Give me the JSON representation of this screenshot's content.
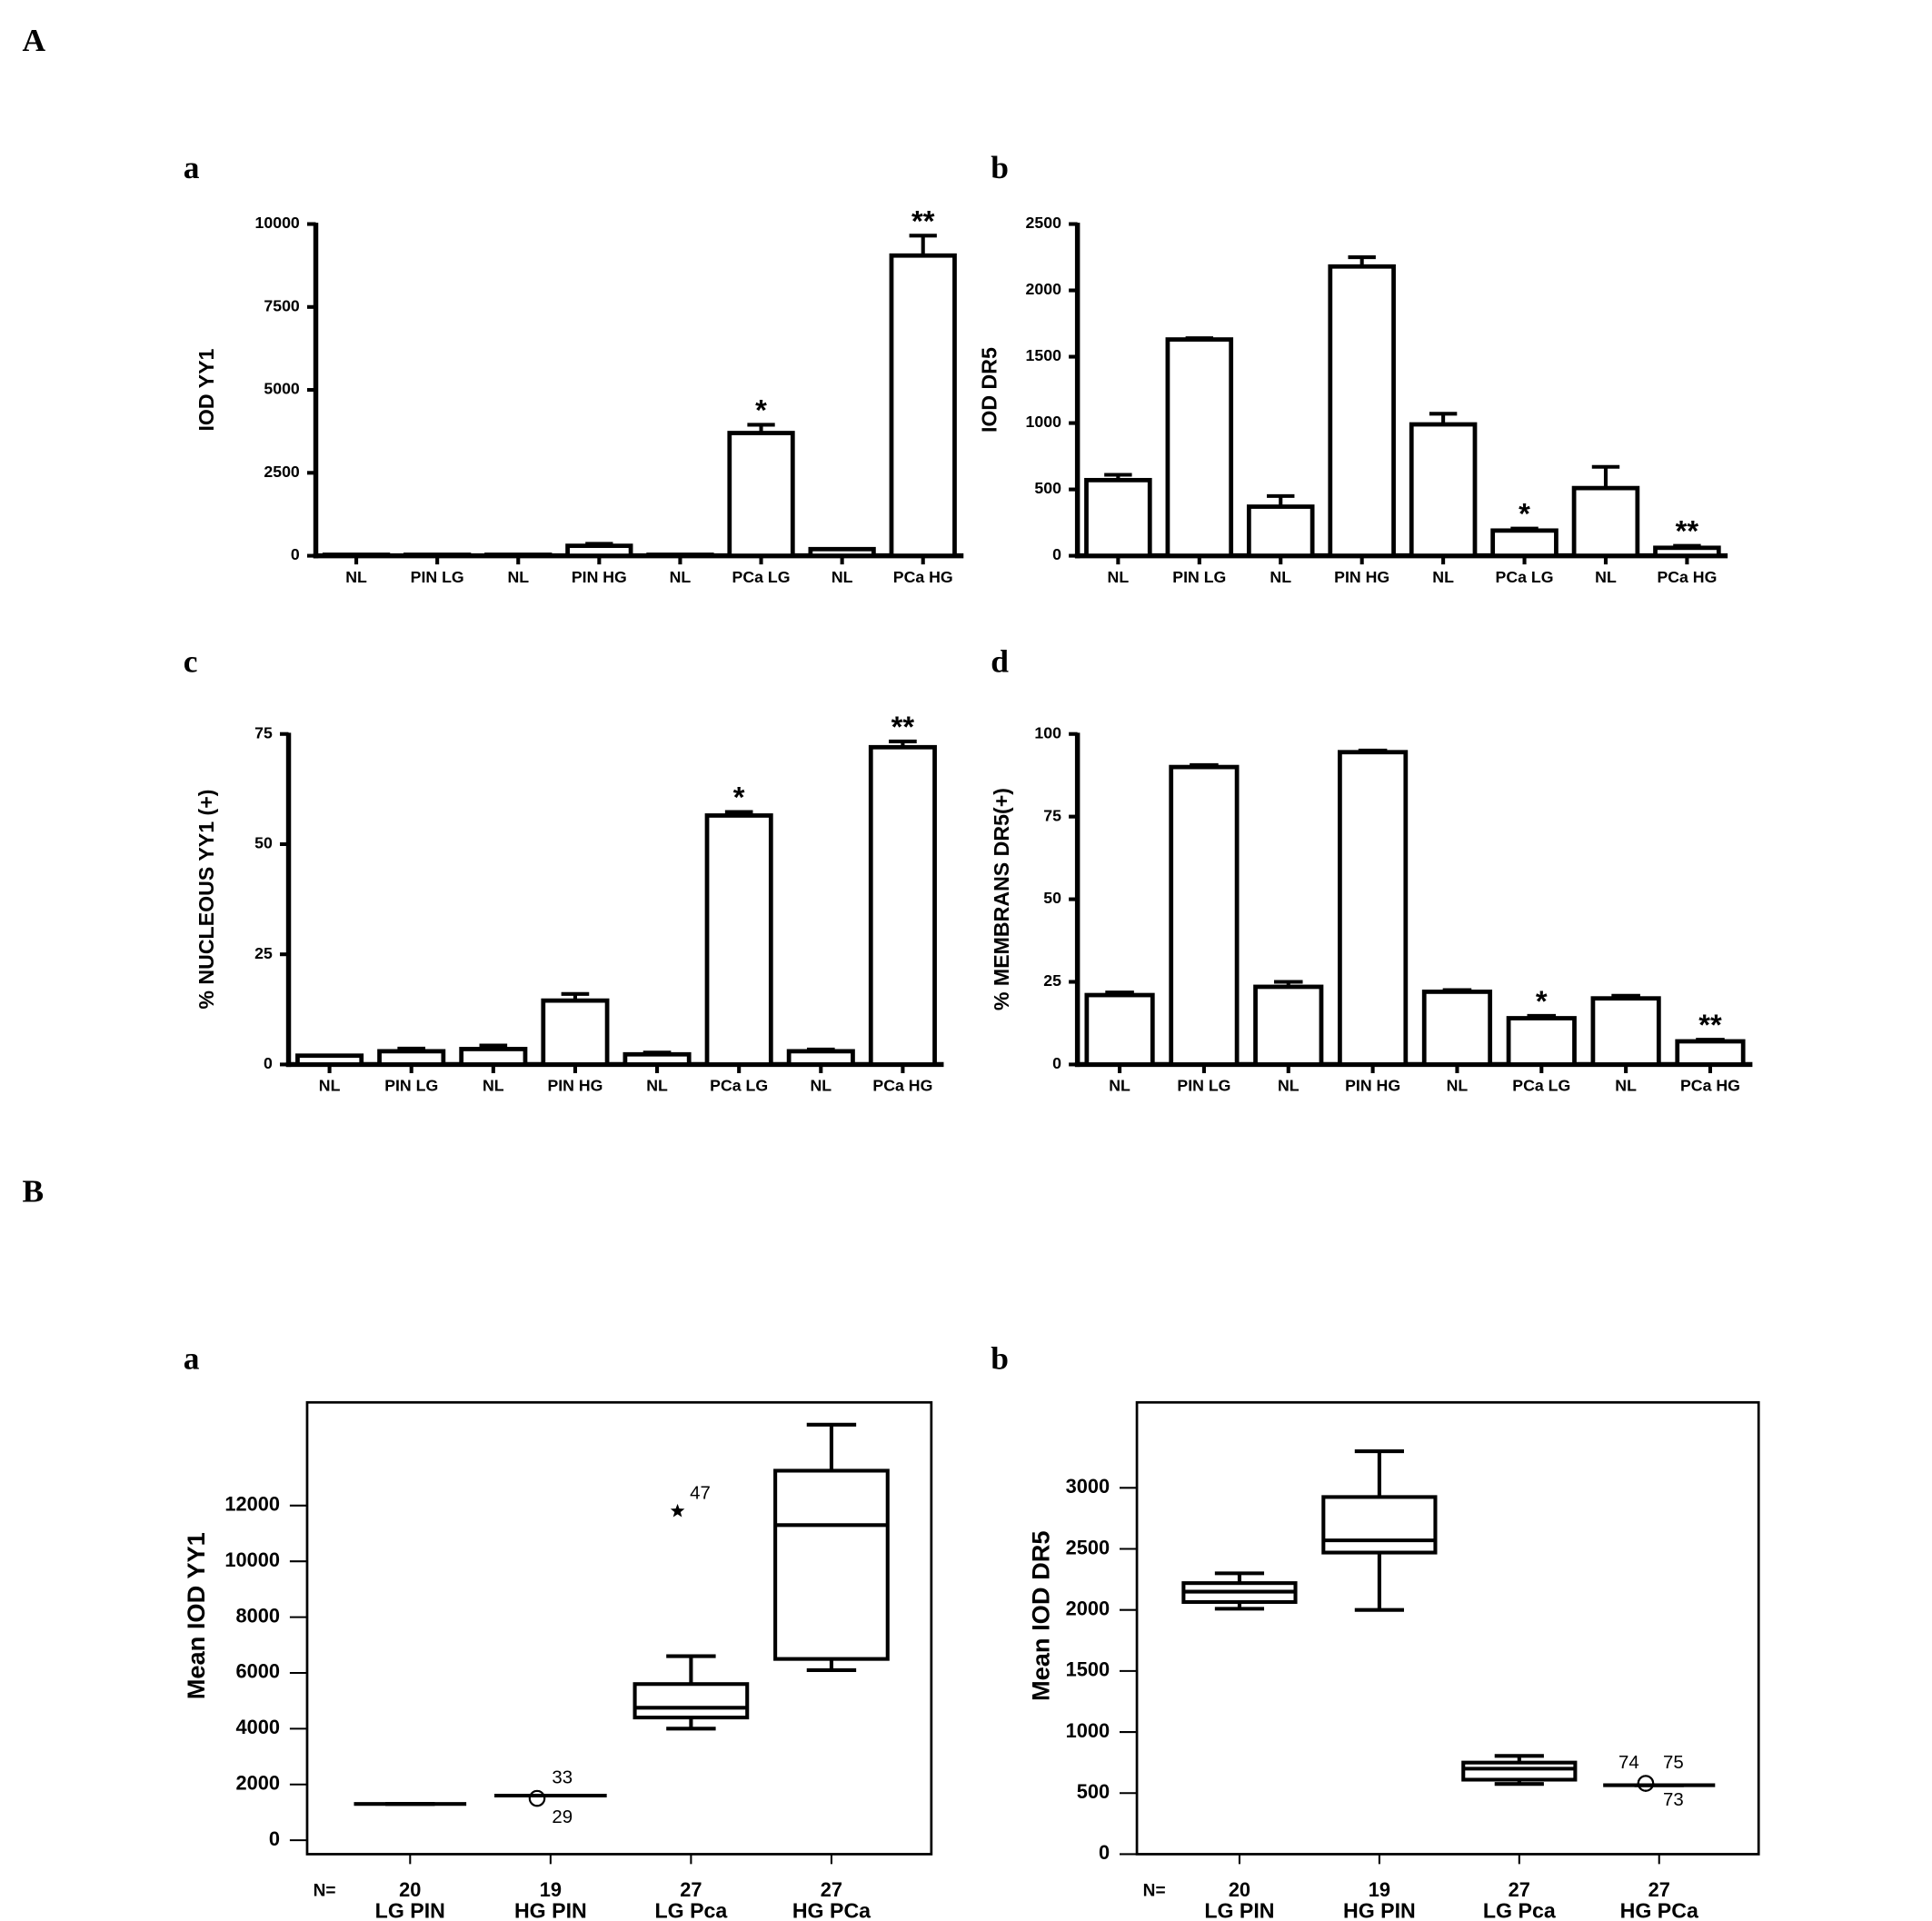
{
  "figure_labels": [
    "A",
    "B"
  ],
  "chart_data": [
    {
      "type": "bar",
      "label": "a",
      "y_label": "IOD YY1",
      "categories": [
        "NL",
        "PIN LG",
        "NL",
        "PIN HG",
        "NL",
        "PCa LG",
        "NL",
        "PCa HG"
      ],
      "values": [
        30,
        30,
        30,
        300,
        30,
        3700,
        200,
        9050
      ],
      "errors": [
        0,
        0,
        0,
        60,
        0,
        250,
        0,
        600
      ],
      "annotations": [
        {
          "category": "PCa LG",
          "text": "*"
        },
        {
          "category": "PCa HG",
          "text": "**"
        }
      ],
      "ylim": [
        0,
        10000
      ],
      "yticks": [
        0,
        2500,
        5000,
        7500,
        10000
      ],
      "color": "#ffffff"
    },
    {
      "type": "bar",
      "label": "b",
      "y_label": "IOD DR5",
      "categories": [
        "NL",
        "PIN LG",
        "NL",
        "PIN HG",
        "NL",
        "PCa LG",
        "NL",
        "PCa HG"
      ],
      "values": [
        570,
        1630,
        370,
        2180,
        990,
        190,
        510,
        60
      ],
      "errors": [
        40,
        10,
        80,
        70,
        80,
        15,
        160,
        15
      ],
      "annotations": [
        {
          "category": "PCa LG",
          "text": "*"
        },
        {
          "category": "PCa HG",
          "text": "**"
        }
      ],
      "ylim": [
        0,
        2500
      ],
      "yticks": [
        0,
        500,
        1000,
        1500,
        2000,
        2500
      ],
      "color": "#ffffff"
    },
    {
      "type": "bar",
      "label": "c",
      "y_label": "% NUCLEOUS YY1 (+)",
      "categories": [
        "NL",
        "PIN LG",
        "NL",
        "PIN HG",
        "NL",
        "PCa LG",
        "NL",
        "PCa HG"
      ],
      "values": [
        2,
        3,
        3.5,
        14.5,
        2.3,
        56.5,
        3,
        72
      ],
      "errors": [
        0,
        0.6,
        0.8,
        1.5,
        0.4,
        0.8,
        0.4,
        1.3
      ],
      "annotations": [
        {
          "category": "PCa LG",
          "text": "*"
        },
        {
          "category": "PCa HG",
          "text": "**"
        }
      ],
      "ylim": [
        0,
        75
      ],
      "yticks": [
        0,
        25,
        50,
        75
      ],
      "color": "#ffffff"
    },
    {
      "type": "bar",
      "label": "d",
      "y_label": "% MEMBRANS DR5(+)",
      "categories": [
        "NL",
        "PIN LG",
        "NL",
        "PIN HG",
        "NL",
        "PCa LG",
        "NL",
        "PCa HG"
      ],
      "values": [
        21,
        90,
        23.5,
        94.5,
        22,
        14,
        20,
        7
      ],
      "errors": [
        0.8,
        0.6,
        1.5,
        0.5,
        0.5,
        0.7,
        0.8,
        0.5
      ],
      "annotations": [
        {
          "category": "PCa LG",
          "text": "*"
        },
        {
          "category": "PCa HG",
          "text": "**"
        }
      ],
      "ylim": [
        0,
        100
      ],
      "yticks": [
        0,
        25,
        50,
        75,
        100
      ],
      "color": "#ffffff"
    },
    {
      "type": "box",
      "label": "a",
      "y_label": "Mean IOD YY1",
      "n_label": "N=",
      "categories": [
        "LG PIN",
        "HG PIN",
        "LG Pca",
        "HG PCa"
      ],
      "n": [
        20,
        19,
        27,
        27
      ],
      "boxes": [
        {
          "min": 1300,
          "q1": 1300,
          "median": 1300,
          "q3": 1300,
          "max": 1300,
          "outliers": []
        },
        {
          "min": 1600,
          "q1": 1600,
          "median": 1600,
          "q3": 1600,
          "max": 1600,
          "outliers": [
            {
              "value": 1500,
              "label": "33",
              "marker": "circle"
            },
            {
              "value": 1500,
              "label": "29",
              "marker": "circle"
            }
          ]
        },
        {
          "min": 4000,
          "q1": 4400,
          "median": 4750,
          "q3": 5600,
          "max": 6600,
          "outliers": [
            {
              "value": 11800,
              "label": "47",
              "marker": "star"
            }
          ]
        },
        {
          "min": 6100,
          "q1": 6500,
          "median": 11300,
          "q3": 13250,
          "max": 14900,
          "outliers": []
        }
      ],
      "ylim": [
        -500,
        15700
      ],
      "yticks": [
        0,
        2000,
        4000,
        6000,
        8000,
        10000,
        12000
      ]
    },
    {
      "type": "box",
      "label": "b",
      "y_label": "Mean IOD DR5",
      "n_label": "N=",
      "categories": [
        "LG PIN",
        "HG PIN",
        "LG Pca",
        "HG PCa"
      ],
      "n": [
        20,
        19,
        27,
        27
      ],
      "boxes": [
        {
          "min": 2010,
          "q1": 2065,
          "median": 2150,
          "q3": 2220,
          "max": 2300,
          "outliers": []
        },
        {
          "min": 2000,
          "q1": 2470,
          "median": 2570,
          "q3": 2925,
          "max": 3300,
          "outliers": []
        },
        {
          "min": 575,
          "q1": 610,
          "median": 700,
          "q3": 750,
          "max": 805,
          "outliers": []
        },
        {
          "min": 565,
          "q1": 565,
          "median": 565,
          "q3": 565,
          "max": 565,
          "outliers": [
            {
              "value": 580,
              "label": "74",
              "marker": "circle"
            },
            {
              "value": 580,
              "label": "75",
              "marker": "circle"
            },
            {
              "value": 580,
              "label": "73",
              "marker": "circle"
            }
          ]
        }
      ],
      "ylim": [
        0,
        3700
      ],
      "yticks": [
        0,
        500,
        1000,
        1500,
        2000,
        2500,
        3000
      ]
    }
  ]
}
